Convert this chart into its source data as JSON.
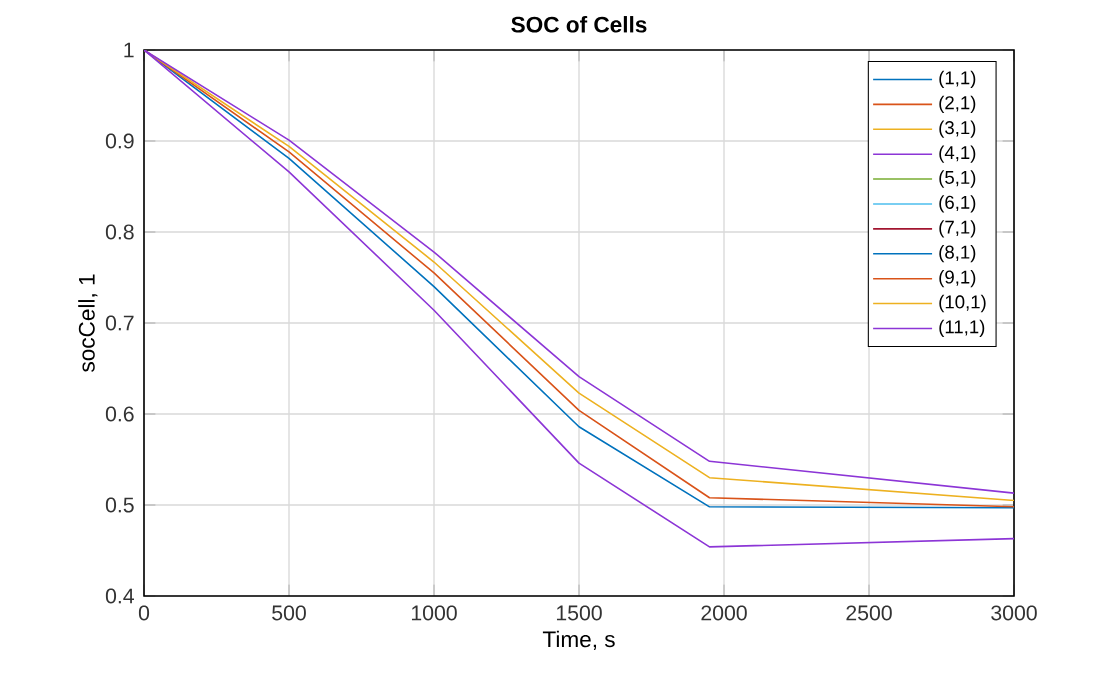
{
  "chart_data": {
    "type": "line",
    "title": "SOC of Cells",
    "xlabel": "Time, s",
    "ylabel": "socCell, 1",
    "x": [
      0,
      500,
      1000,
      1500,
      1950,
      3000
    ],
    "series": [
      {
        "name": "(1,1)",
        "color": "#0072bd",
        "values": [
          1,
          0.881,
          0.74,
          0.586,
          0.498,
          0.497
        ]
      },
      {
        "name": "(2,1)",
        "color": "#d95319",
        "values": [
          1,
          0.888,
          0.755,
          0.604,
          0.508,
          0.498
        ]
      },
      {
        "name": "(3,1)",
        "color": "#edb120",
        "values": [
          1,
          0.894,
          0.767,
          0.623,
          0.53,
          0.505
        ]
      },
      {
        "name": "(4,1)",
        "color": "#8c35d6",
        "values": [
          1,
          0.866,
          0.714,
          0.546,
          0.454,
          0.463
        ]
      },
      {
        "name": "(5,1)",
        "color": "#77ac30",
        "values": [
          null,
          null,
          null,
          null,
          null,
          null
        ]
      },
      {
        "name": "(6,1)",
        "color": "#4dbeee",
        "values": [
          null,
          null,
          null,
          null,
          null,
          null
        ]
      },
      {
        "name": "(7,1)",
        "color": "#a2142f",
        "values": [
          null,
          null,
          null,
          null,
          null,
          null
        ]
      },
      {
        "name": "(8,1)",
        "color": "#0072bd",
        "values": [
          null,
          null,
          null,
          null,
          null,
          null
        ]
      },
      {
        "name": "(9,1)",
        "color": "#d95319",
        "values": [
          null,
          null,
          null,
          null,
          null,
          null
        ]
      },
      {
        "name": "(10,1)",
        "color": "#edb120",
        "values": [
          null,
          null,
          null,
          null,
          null,
          null
        ]
      },
      {
        "name": "(11,1)",
        "color": "#8c35d6",
        "values": [
          1,
          0.901,
          0.778,
          0.641,
          0.548,
          0.513
        ]
      }
    ],
    "xlim": [
      0,
      3000
    ],
    "xticks": [
      0,
      500,
      1000,
      1500,
      2000,
      2500,
      3000
    ],
    "ylim": [
      0.4,
      1
    ],
    "yticks": [
      0.4,
      0.5,
      0.6,
      0.7,
      0.8,
      0.9,
      1
    ],
    "grid": true,
    "legend": "top right"
  }
}
